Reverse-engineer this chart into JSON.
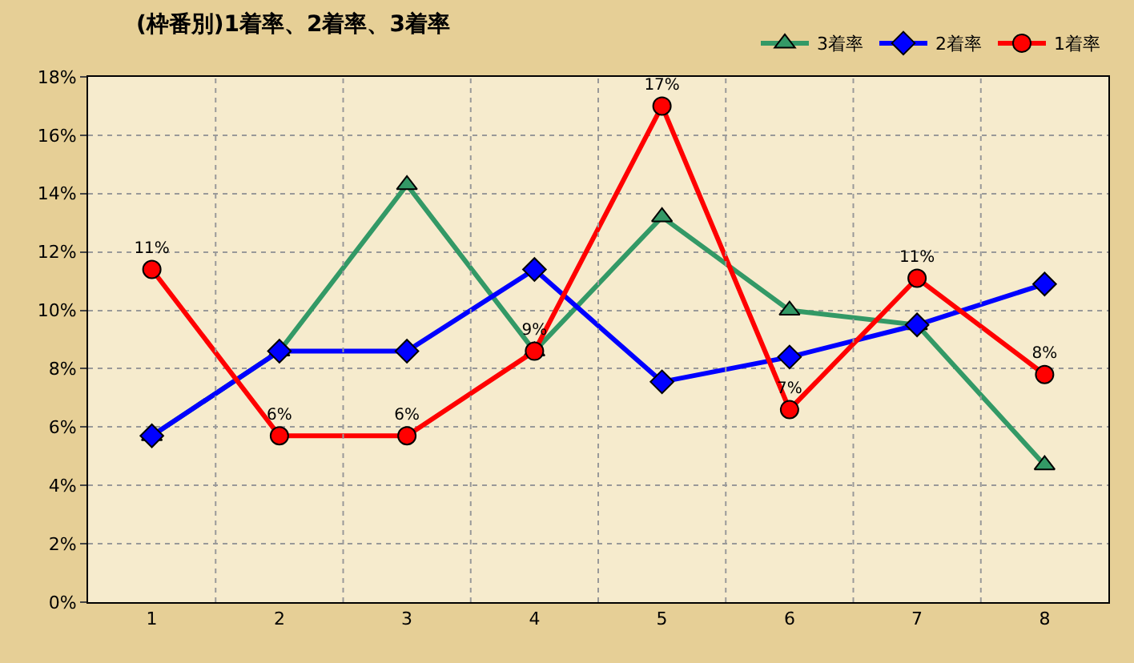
{
  "chart_data": {
    "type": "line",
    "title": "(枠番別)1着率、2着率、3着率",
    "categories": [
      "1",
      "2",
      "3",
      "4",
      "5",
      "6",
      "7",
      "8"
    ],
    "series": [
      {
        "name": "3着率",
        "color": "#339966",
        "marker": "triangle",
        "values": [
          5.7,
          8.6,
          14.3,
          8.6,
          13.2,
          10.0,
          9.5,
          4.7
        ]
      },
      {
        "name": "2着率",
        "color": "#0000ff",
        "marker": "diamond",
        "values": [
          5.7,
          8.6,
          8.6,
          11.4,
          7.55,
          8.4,
          9.5,
          10.9
        ]
      },
      {
        "name": "1着率",
        "color": "#ff0000",
        "marker": "circle",
        "values": [
          11.4,
          5.7,
          5.7,
          8.6,
          17.0,
          6.6,
          11.1,
          7.8
        ],
        "value_labels": [
          "11%",
          "6%",
          "6%",
          "9%",
          "17%",
          "7%",
          "11%",
          "8%"
        ]
      }
    ],
    "ylim": [
      0,
      18
    ],
    "yticks": [
      {
        "value": 0,
        "label": "0%"
      },
      {
        "value": 2,
        "label": "2%"
      },
      {
        "value": 4,
        "label": "4%"
      },
      {
        "value": 6,
        "label": "6%"
      },
      {
        "value": 8,
        "label": "8%"
      },
      {
        "value": 10,
        "label": "10%"
      },
      {
        "value": 12,
        "label": "12%"
      },
      {
        "value": 14,
        "label": "14%"
      },
      {
        "value": 16,
        "label": "16%"
      },
      {
        "value": 18,
        "label": "18%"
      }
    ],
    "grid": true,
    "legend": "top right",
    "line_style": "solid"
  }
}
